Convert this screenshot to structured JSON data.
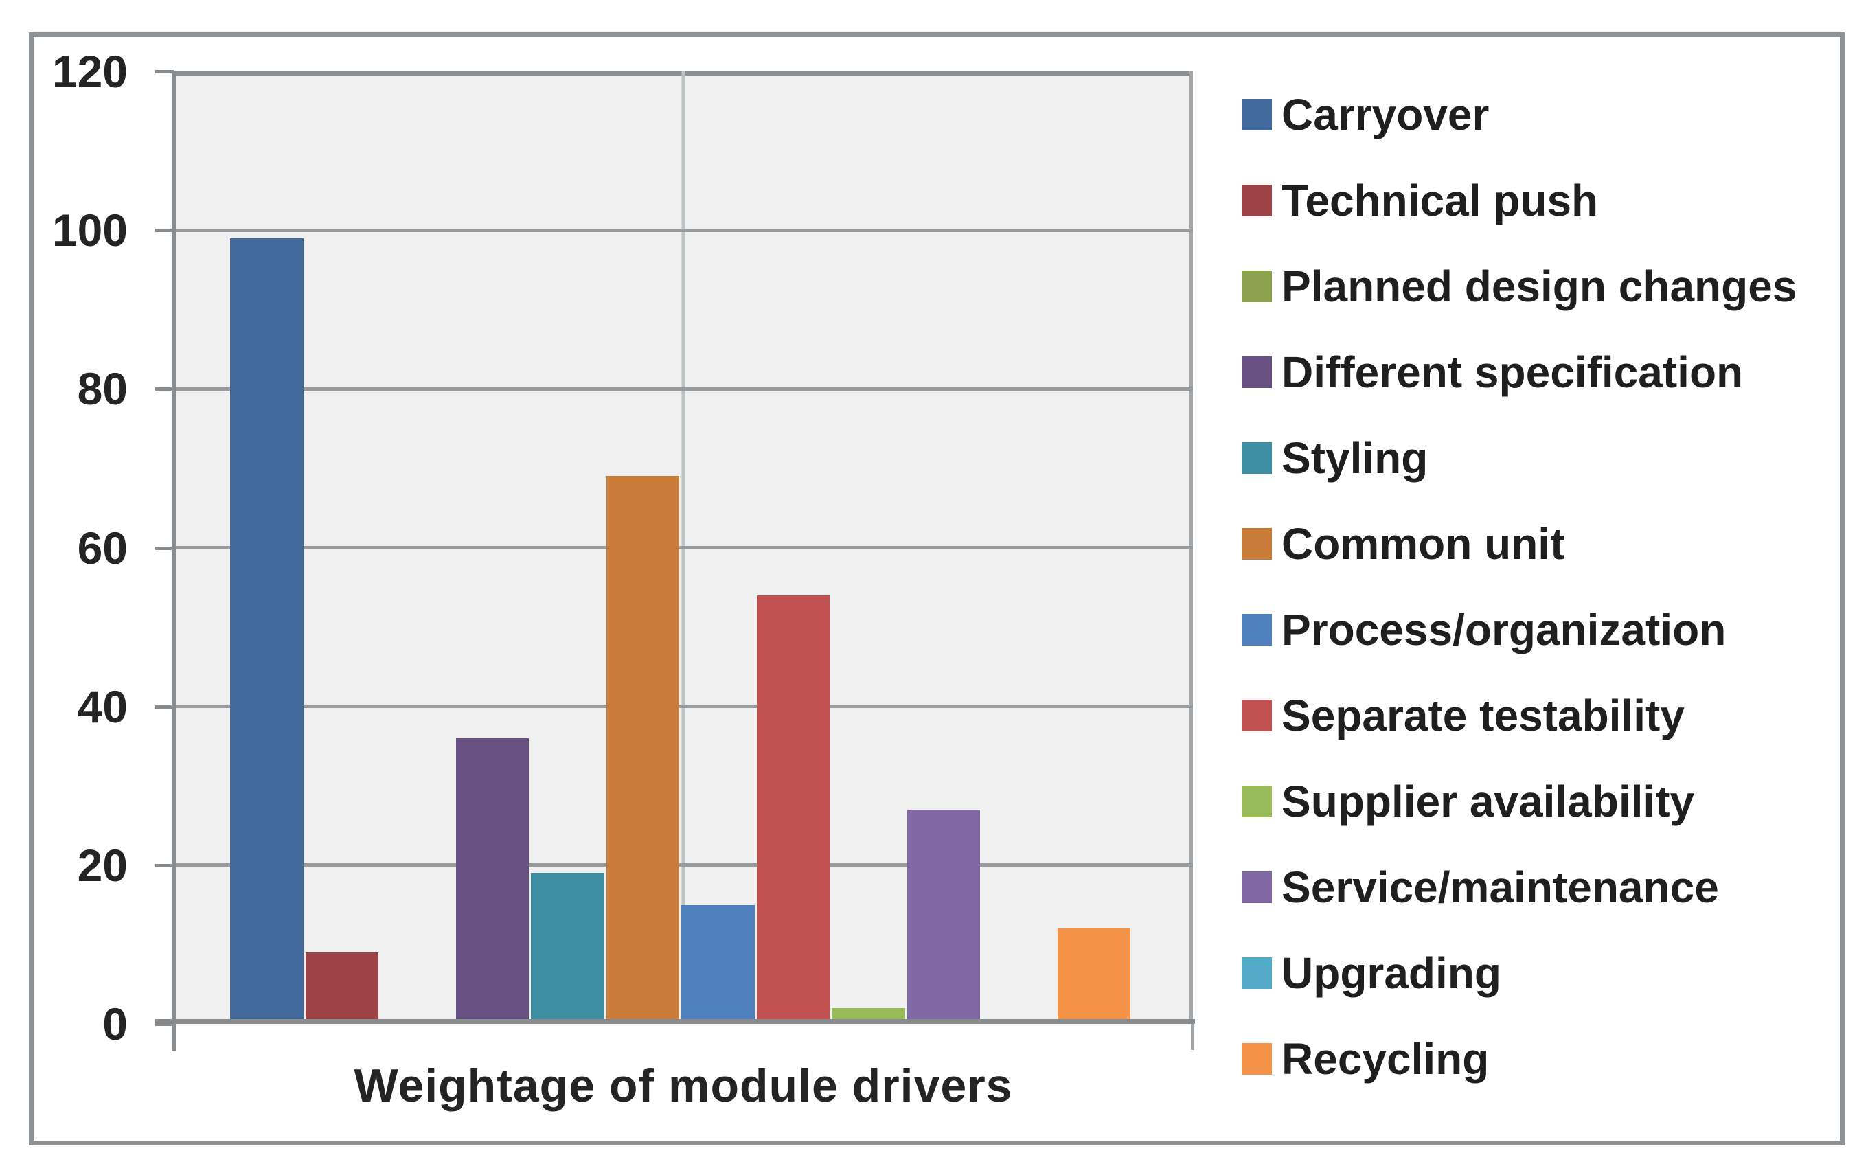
{
  "chart_data": {
    "type": "bar",
    "title": "",
    "xlabel": "Weightage of module drivers",
    "ylabel": "",
    "ylim": [
      0,
      120
    ],
    "yticks": [
      0,
      20,
      40,
      60,
      80,
      100,
      120
    ],
    "grid": true,
    "legend_position": "right",
    "categories": [
      "Carryover",
      "Technical push",
      "Planned design changes",
      "Different specification",
      "Styling",
      "Common unit",
      "Process/organization",
      "Separate testability",
      "Supplier availability",
      "Service/maintenance",
      "Upgrading",
      "Recycling"
    ],
    "values": [
      99,
      9,
      0,
      36,
      19,
      69,
      15,
      54,
      2,
      27,
      0,
      12
    ],
    "colors": [
      "#41699C",
      "#9E4345",
      "#8CA24F",
      "#675082",
      "#3E8EA3",
      "#C87C38",
      "#4E80BE",
      "#C05150",
      "#99BB59",
      "#7F68A4",
      "#52ABC8",
      "#F49348"
    ]
  },
  "style": {
    "plot_background": "#F0F0F0",
    "gridline_color": "#989B9E",
    "axis_color": "#898C8E",
    "frame_border_color": "#8F9294",
    "text_color": "#242424"
  }
}
